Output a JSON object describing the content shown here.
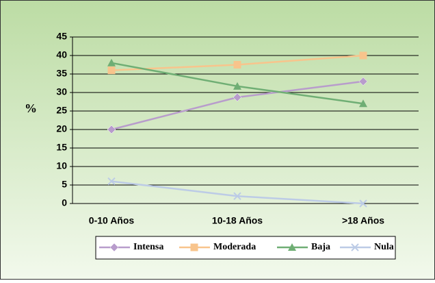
{
  "chart_data": {
    "type": "line",
    "y_label": "%",
    "categories": [
      "0-10 Años",
      "10-18 Años",
      ">18 Años"
    ],
    "series": [
      {
        "name": "Intensa",
        "color": "#b89ccc",
        "marker": "diamond",
        "values": [
          20,
          28.7,
          33
        ]
      },
      {
        "name": "Moderada",
        "color": "#f8c48c",
        "marker": "square",
        "values": [
          36,
          37.5,
          40
        ]
      },
      {
        "name": "Baja",
        "color": "#6fae74",
        "marker": "triangle",
        "values": [
          38,
          31.7,
          27
        ]
      },
      {
        "name": "Nula",
        "color": "#bccbe6",
        "marker": "x",
        "values": [
          6,
          2,
          0
        ]
      }
    ],
    "ylim": [
      0,
      45
    ],
    "yticks": [
      0,
      5,
      10,
      15,
      20,
      25,
      30,
      35,
      40,
      45
    ],
    "grid": true,
    "legend": "bottom"
  }
}
